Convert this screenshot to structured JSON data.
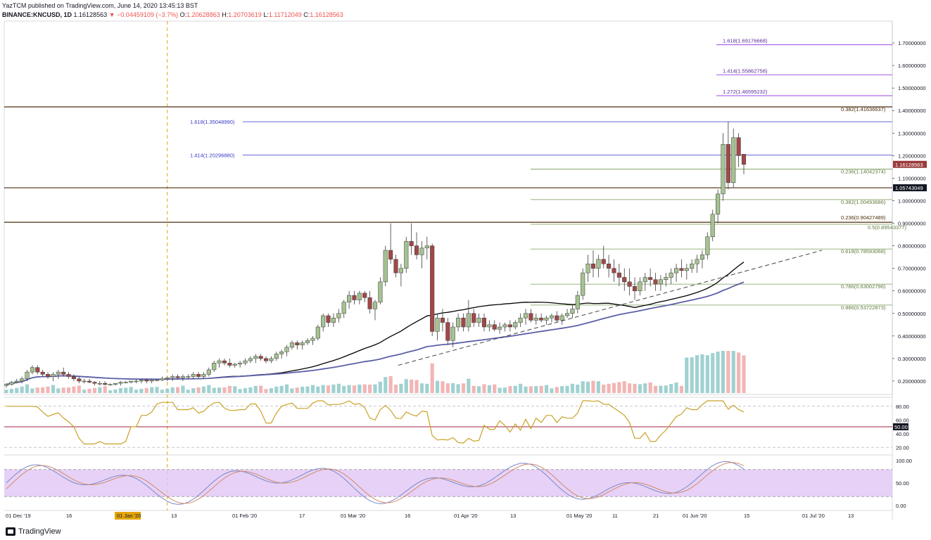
{
  "header": {
    "publisher": "YazTCM published on TradingView.com, June 14, 2020 13:45:13 BST",
    "symbol": "BINANCE:KNCUSD, 1D",
    "last": "1.16128563",
    "change_arrow": "▼",
    "change": "−0.04459109 (−3.7%)",
    "o_label": "O:",
    "o": "1.20628863",
    "h_label": "H:",
    "h": "1.20703619",
    "l_label": "L:",
    "l": "1.11712049",
    "c_label": "C:",
    "c": "1.16128563"
  },
  "logo_text": "TradingView",
  "colors": {
    "bull": "#a5c291",
    "bear": "#a04848",
    "ma100": "#000000",
    "ma200": "#5c5fa8",
    "fib_ext": "#3838c8",
    "fib_ext_right": "#8a2be2",
    "fib_ret": "#7a9a55",
    "resistance": "#4b2e0a",
    "rsi": "#c9a227",
    "stoch_k": "#7b8ac6",
    "stoch_d": "#d08a6a",
    "stoch_band": "#e1c5f5",
    "vol_up": "#8fc9c9",
    "vol_down": "#f0a8a8",
    "last_price_bg": "#9a3a3a"
  },
  "chart_data": {
    "type": "candlestick",
    "title": "BINANCE:KNCUSD, 1D",
    "ylim": [
      0.15,
      1.75
    ],
    "y_ticks": [
      "1.70000000",
      "1.60000000",
      "1.50000000",
      "1.40000000",
      "1.30000000",
      "1.20000000",
      "1.10000000",
      "1.00000000",
      "0.90000000",
      "0.80000000",
      "0.70000000",
      "0.60000000",
      "0.50000000",
      "0.40000000",
      "0.30000000",
      "0.20000000"
    ],
    "x_ticks": [
      "01 Dec '19",
      "16",
      "01 Jan '20",
      "13",
      "01 Feb '20",
      "17",
      "01 Mar '20",
      "16",
      "01 Apr '20",
      "13",
      "01 May '20",
      "11",
      "21",
      "01 Jun '20",
      "15",
      "01 Jul '20",
      "13"
    ],
    "price_labels": {
      "last": "1.16128563",
      "resistance": "1.05743049"
    },
    "fib_extension_left": [
      {
        "label": "1.618",
        "value": "1.35048990"
      },
      {
        "label": "1.414",
        "value": "1.20296880"
      }
    ],
    "fib_extension_right": [
      {
        "label": "1.618",
        "value": "1.69176668"
      },
      {
        "label": "1.414",
        "value": "1.55862758"
      },
      {
        "label": "1.272",
        "value": "1.46595232"
      }
    ],
    "fib_retracement": [
      {
        "label": "0.382",
        "value": "1.41636637"
      },
      {
        "label": "0.236",
        "value": "1.14042374"
      },
      {
        "label": "0.382",
        "value": "1.00493686"
      },
      {
        "label": "0.236",
        "value": "0.90427489"
      },
      {
        "label": "0.5",
        "value": "0.89543377"
      },
      {
        "label": "0.618",
        "value": "0.78593068"
      },
      {
        "label": "0.786",
        "value": "0.63002796"
      },
      {
        "label": "0.886",
        "value": "0.53722873"
      }
    ],
    "resistance_lines": [
      1.41636637,
      1.05743049,
      0.90427489
    ],
    "marker_date_index": 31,
    "candles_ohlc": [
      [
        0.18,
        0.19,
        0.17,
        0.185
      ],
      [
        0.185,
        0.2,
        0.18,
        0.195
      ],
      [
        0.195,
        0.21,
        0.19,
        0.2
      ],
      [
        0.2,
        0.22,
        0.19,
        0.21
      ],
      [
        0.21,
        0.25,
        0.2,
        0.24
      ],
      [
        0.24,
        0.27,
        0.23,
        0.26
      ],
      [
        0.26,
        0.27,
        0.23,
        0.24
      ],
      [
        0.24,
        0.25,
        0.22,
        0.23
      ],
      [
        0.23,
        0.24,
        0.21,
        0.22
      ],
      [
        0.22,
        0.24,
        0.2,
        0.23
      ],
      [
        0.23,
        0.25,
        0.21,
        0.24
      ],
      [
        0.24,
        0.26,
        0.22,
        0.23
      ],
      [
        0.23,
        0.24,
        0.21,
        0.22
      ],
      [
        0.22,
        0.23,
        0.2,
        0.21
      ],
      [
        0.21,
        0.22,
        0.19,
        0.2
      ],
      [
        0.2,
        0.21,
        0.19,
        0.2
      ],
      [
        0.2,
        0.21,
        0.19,
        0.195
      ],
      [
        0.195,
        0.2,
        0.18,
        0.19
      ],
      [
        0.19,
        0.2,
        0.18,
        0.19
      ],
      [
        0.19,
        0.2,
        0.18,
        0.185
      ],
      [
        0.185,
        0.19,
        0.18,
        0.185
      ],
      [
        0.185,
        0.19,
        0.18,
        0.19
      ],
      [
        0.19,
        0.2,
        0.18,
        0.195
      ],
      [
        0.195,
        0.2,
        0.19,
        0.195
      ],
      [
        0.195,
        0.2,
        0.19,
        0.2
      ],
      [
        0.2,
        0.21,
        0.19,
        0.2
      ],
      [
        0.2,
        0.21,
        0.19,
        0.205
      ],
      [
        0.205,
        0.21,
        0.19,
        0.2
      ],
      [
        0.2,
        0.21,
        0.19,
        0.205
      ],
      [
        0.205,
        0.21,
        0.2,
        0.205
      ],
      [
        0.205,
        0.22,
        0.2,
        0.21
      ],
      [
        0.21,
        0.22,
        0.2,
        0.215
      ],
      [
        0.215,
        0.23,
        0.2,
        0.22
      ],
      [
        0.22,
        0.23,
        0.21,
        0.215
      ],
      [
        0.215,
        0.23,
        0.2,
        0.22
      ],
      [
        0.22,
        0.23,
        0.21,
        0.22
      ],
      [
        0.22,
        0.24,
        0.21,
        0.23
      ],
      [
        0.23,
        0.24,
        0.21,
        0.22
      ],
      [
        0.22,
        0.24,
        0.21,
        0.23
      ],
      [
        0.23,
        0.26,
        0.22,
        0.25
      ],
      [
        0.25,
        0.29,
        0.24,
        0.28
      ],
      [
        0.28,
        0.3,
        0.26,
        0.29
      ],
      [
        0.29,
        0.3,
        0.27,
        0.28
      ],
      [
        0.28,
        0.3,
        0.26,
        0.27
      ],
      [
        0.27,
        0.28,
        0.26,
        0.275
      ],
      [
        0.275,
        0.29,
        0.26,
        0.28
      ],
      [
        0.28,
        0.3,
        0.27,
        0.29
      ],
      [
        0.29,
        0.31,
        0.28,
        0.3
      ],
      [
        0.3,
        0.32,
        0.28,
        0.31
      ],
      [
        0.31,
        0.32,
        0.29,
        0.3
      ],
      [
        0.3,
        0.31,
        0.28,
        0.29
      ],
      [
        0.29,
        0.31,
        0.28,
        0.3
      ],
      [
        0.3,
        0.33,
        0.29,
        0.32
      ],
      [
        0.32,
        0.34,
        0.3,
        0.33
      ],
      [
        0.33,
        0.36,
        0.31,
        0.35
      ],
      [
        0.35,
        0.38,
        0.34,
        0.37
      ],
      [
        0.37,
        0.38,
        0.34,
        0.36
      ],
      [
        0.36,
        0.38,
        0.34,
        0.37
      ],
      [
        0.37,
        0.39,
        0.36,
        0.38
      ],
      [
        0.38,
        0.4,
        0.36,
        0.39
      ],
      [
        0.39,
        0.45,
        0.38,
        0.44
      ],
      [
        0.44,
        0.5,
        0.42,
        0.49
      ],
      [
        0.49,
        0.5,
        0.44,
        0.46
      ],
      [
        0.46,
        0.5,
        0.44,
        0.48
      ],
      [
        0.48,
        0.52,
        0.46,
        0.5
      ],
      [
        0.5,
        0.56,
        0.48,
        0.55
      ],
      [
        0.55,
        0.6,
        0.52,
        0.58
      ],
      [
        0.58,
        0.6,
        0.54,
        0.56
      ],
      [
        0.56,
        0.6,
        0.54,
        0.59
      ],
      [
        0.59,
        0.6,
        0.55,
        0.57
      ],
      [
        0.57,
        0.6,
        0.5,
        0.52
      ],
      [
        0.52,
        0.56,
        0.47,
        0.55
      ],
      [
        0.55,
        0.66,
        0.54,
        0.64
      ],
      [
        0.64,
        0.8,
        0.62,
        0.78
      ],
      [
        0.78,
        0.9,
        0.72,
        0.74
      ],
      [
        0.74,
        0.76,
        0.66,
        0.68
      ],
      [
        0.68,
        0.72,
        0.62,
        0.7
      ],
      [
        0.7,
        0.84,
        0.68,
        0.82
      ],
      [
        0.82,
        0.9,
        0.76,
        0.8
      ],
      [
        0.8,
        0.86,
        0.74,
        0.76
      ],
      [
        0.76,
        0.82,
        0.7,
        0.79
      ],
      [
        0.79,
        0.84,
        0.74,
        0.8
      ],
      [
        0.8,
        0.81,
        0.4,
        0.42
      ],
      [
        0.42,
        0.5,
        0.38,
        0.48
      ],
      [
        0.48,
        0.52,
        0.42,
        0.46
      ],
      [
        0.46,
        0.48,
        0.36,
        0.38
      ],
      [
        0.38,
        0.46,
        0.35,
        0.44
      ],
      [
        0.44,
        0.5,
        0.42,
        0.48
      ],
      [
        0.48,
        0.5,
        0.42,
        0.44
      ],
      [
        0.44,
        0.56,
        0.42,
        0.5
      ],
      [
        0.5,
        0.52,
        0.44,
        0.46
      ],
      [
        0.46,
        0.5,
        0.44,
        0.48
      ],
      [
        0.48,
        0.5,
        0.42,
        0.44
      ],
      [
        0.44,
        0.47,
        0.42,
        0.45
      ],
      [
        0.45,
        0.47,
        0.42,
        0.43
      ],
      [
        0.43,
        0.46,
        0.41,
        0.44
      ],
      [
        0.44,
        0.46,
        0.42,
        0.45
      ],
      [
        0.45,
        0.47,
        0.42,
        0.44
      ],
      [
        0.44,
        0.47,
        0.43,
        0.46
      ],
      [
        0.46,
        0.5,
        0.44,
        0.48
      ],
      [
        0.48,
        0.52,
        0.45,
        0.5
      ],
      [
        0.5,
        0.52,
        0.46,
        0.47
      ],
      [
        0.47,
        0.5,
        0.45,
        0.48
      ],
      [
        0.48,
        0.5,
        0.46,
        0.47
      ],
      [
        0.47,
        0.49,
        0.45,
        0.48
      ],
      [
        0.48,
        0.5,
        0.46,
        0.49
      ],
      [
        0.49,
        0.51,
        0.46,
        0.47
      ],
      [
        0.47,
        0.5,
        0.45,
        0.49
      ],
      [
        0.49,
        0.52,
        0.48,
        0.5
      ],
      [
        0.5,
        0.54,
        0.48,
        0.52
      ],
      [
        0.52,
        0.6,
        0.5,
        0.58
      ],
      [
        0.58,
        0.7,
        0.56,
        0.68
      ],
      [
        0.68,
        0.76,
        0.64,
        0.72
      ],
      [
        0.72,
        0.78,
        0.66,
        0.7
      ],
      [
        0.7,
        0.76,
        0.66,
        0.74
      ],
      [
        0.74,
        0.8,
        0.7,
        0.72
      ],
      [
        0.72,
        0.76,
        0.66,
        0.7
      ],
      [
        0.7,
        0.74,
        0.64,
        0.68
      ],
      [
        0.68,
        0.72,
        0.62,
        0.66
      ],
      [
        0.66,
        0.7,
        0.6,
        0.64
      ],
      [
        0.64,
        0.7,
        0.58,
        0.62
      ],
      [
        0.62,
        0.66,
        0.56,
        0.6
      ],
      [
        0.6,
        0.66,
        0.58,
        0.64
      ],
      [
        0.64,
        0.68,
        0.6,
        0.66
      ],
      [
        0.66,
        0.7,
        0.62,
        0.65
      ],
      [
        0.65,
        0.68,
        0.6,
        0.63
      ],
      [
        0.63,
        0.67,
        0.6,
        0.65
      ],
      [
        0.65,
        0.68,
        0.62,
        0.66
      ],
      [
        0.66,
        0.7,
        0.63,
        0.68
      ],
      [
        0.68,
        0.72,
        0.64,
        0.7
      ],
      [
        0.7,
        0.74,
        0.66,
        0.69
      ],
      [
        0.69,
        0.72,
        0.65,
        0.7
      ],
      [
        0.7,
        0.74,
        0.68,
        0.72
      ],
      [
        0.72,
        0.76,
        0.68,
        0.74
      ],
      [
        0.74,
        0.78,
        0.7,
        0.76
      ],
      [
        0.76,
        0.86,
        0.74,
        0.84
      ],
      [
        0.84,
        0.96,
        0.82,
        0.94
      ],
      [
        0.94,
        1.05,
        0.9,
        1.03
      ],
      [
        1.03,
        1.3,
        1.0,
        1.25
      ],
      [
        1.25,
        1.35,
        1.05,
        1.08
      ],
      [
        1.08,
        1.32,
        1.06,
        1.28
      ],
      [
        1.28,
        1.3,
        1.15,
        1.2
      ],
      [
        1.2061,
        1.207,
        1.1171,
        1.1613
      ]
    ],
    "rsi": {
      "levels": [
        "80.00",
        "60.00",
        "50.00",
        "40.00",
        "20.00"
      ],
      "current": 67
    },
    "stoch_rsi": {
      "levels": [
        "100.00",
        "50.00",
        "0.00"
      ]
    }
  }
}
